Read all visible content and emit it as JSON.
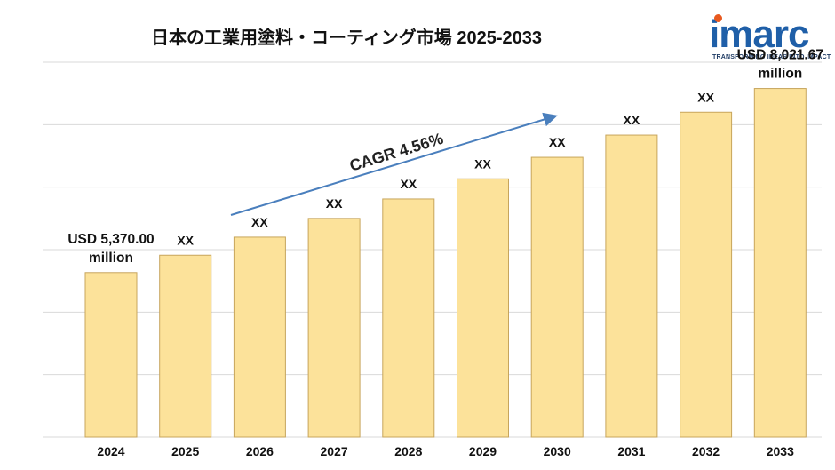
{
  "title": "日本の工業用塗料・コーティング市場 2025-2033",
  "logo": {
    "word": "imarc",
    "tagline": "TRANSFORMING IDEAS INTO IMPACT",
    "colors": {
      "word": "#1f5fa8",
      "dot": "#e8591f"
    }
  },
  "chart_data": {
    "type": "bar",
    "categories": [
      "2024",
      "2025",
      "2026",
      "2027",
      "2028",
      "2029",
      "2030",
      "2031",
      "2032",
      "2033"
    ],
    "values": [
      5370.0,
      5620,
      5880,
      6150,
      6430,
      6720,
      7030,
      7350,
      7680,
      8021.67
    ],
    "labels": [
      "USD 5,370.00\nmillion",
      "XX",
      "XX",
      "XX",
      "XX",
      "XX",
      "XX",
      "XX",
      "XX",
      "USD 8,021.67\nmillion"
    ],
    "ylim": [
      3000,
      8400
    ],
    "grid": true,
    "annotation": "CAGR 4.56%",
    "colors": {
      "bar": "#fce29a",
      "bar_stroke": "#c7a55c",
      "arrow": "#4a7fbd",
      "grid": "#d9d9d9"
    }
  }
}
